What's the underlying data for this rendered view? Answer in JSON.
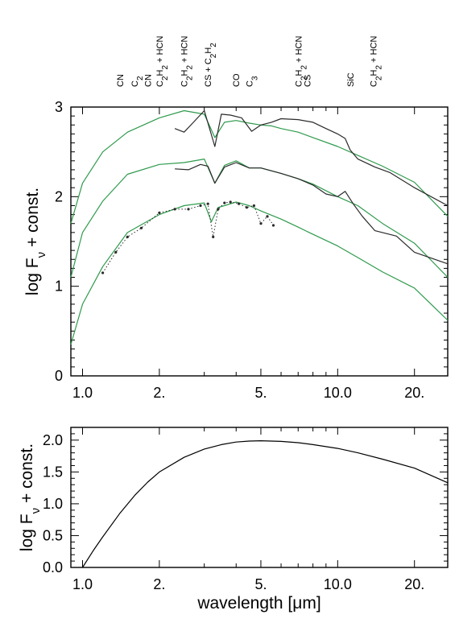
{
  "chart_data": [
    {
      "type": "line",
      "xlabel": "",
      "ylabel": "log F_ν + const.",
      "ylabel_parts": [
        "log F",
        "ν",
        " + const."
      ],
      "x_scale": "log",
      "xlim": [
        0.9,
        27
      ],
      "ylim": [
        0,
        3
      ],
      "x_tick_labels": [
        {
          "value": 1.0,
          "label": "1.0"
        },
        {
          "value": 2.0,
          "label": "2."
        },
        {
          "value": 5.0,
          "label": "5."
        },
        {
          "value": 10.0,
          "label": "10.0"
        },
        {
          "value": 20.0,
          "label": "20."
        }
      ],
      "y_tick_labels": [
        {
          "value": 0,
          "label": "0"
        },
        {
          "value": 1,
          "label": "1"
        },
        {
          "value": 2,
          "label": "2"
        },
        {
          "value": 3,
          "label": "3"
        }
      ],
      "molecular_bands": [
        {
          "x": 1.4,
          "parts": [
            [
              "CN",
              ""
            ]
          ]
        },
        {
          "x": 1.6,
          "parts": [
            [
              "C",
              ""
            ],
            [
              "2",
              "sub"
            ]
          ]
        },
        {
          "x": 1.8,
          "parts": [
            [
              "CN",
              ""
            ]
          ]
        },
        {
          "x": 2.0,
          "parts": [
            [
              "C",
              ""
            ],
            [
              "2",
              "sub"
            ],
            [
              "H",
              ""
            ],
            [
              "2",
              "sub"
            ],
            [
              " + HCN",
              ""
            ]
          ]
        },
        {
          "x": 2.5,
          "parts": [
            [
              "C",
              ""
            ],
            [
              "2",
              "sub"
            ],
            [
              "H",
              ""
            ],
            [
              "2",
              "sub"
            ],
            [
              " + HCN",
              ""
            ]
          ]
        },
        {
          "x": 3.1,
          "parts": [
            [
              "CS + C",
              ""
            ],
            [
              "2",
              "sub"
            ],
            [
              "H",
              ""
            ],
            [
              "2",
              "sub"
            ]
          ]
        },
        {
          "x": 4.0,
          "parts": [
            [
              "CO",
              ""
            ]
          ]
        },
        {
          "x": 4.5,
          "parts": [
            [
              "C",
              ""
            ],
            [
              "3",
              "sub"
            ]
          ]
        },
        {
          "x": 7.0,
          "parts": [
            [
              "C",
              ""
            ],
            [
              "2",
              "sub"
            ],
            [
              "H",
              ""
            ],
            [
              "2",
              "sub"
            ],
            [
              " + HCN",
              ""
            ]
          ]
        },
        {
          "x": 7.6,
          "parts": [
            [
              "CS",
              ""
            ]
          ]
        },
        {
          "x": 11.2,
          "parts": [
            [
              "SiC",
              ""
            ]
          ]
        },
        {
          "x": 13.8,
          "parts": [
            [
              "C",
              ""
            ],
            [
              "2",
              "sub"
            ],
            [
              "H",
              ""
            ],
            [
              "2",
              "sub"
            ],
            [
              " + HCN",
              ""
            ]
          ]
        }
      ],
      "series": [
        {
          "style": "model",
          "color": "#2e9a4c",
          "x": [
            0.9,
            1.0,
            1.2,
            1.5,
            2.0,
            2.5,
            3.0,
            3.3,
            3.6,
            4.0,
            4.5,
            5.0,
            5.5,
            6.0,
            7.0,
            8.0,
            10.0,
            12.0,
            15.0,
            20.0,
            27.0
          ],
          "y": [
            1.7,
            2.15,
            2.5,
            2.72,
            2.88,
            2.96,
            2.92,
            2.66,
            2.83,
            2.85,
            2.82,
            2.8,
            2.79,
            2.76,
            2.72,
            2.66,
            2.56,
            2.46,
            2.34,
            2.16,
            1.78
          ]
        },
        {
          "style": "observed",
          "color": "#2a2a2a",
          "x": [
            2.3,
            2.5,
            2.7,
            3.0,
            3.3,
            3.5,
            3.8,
            4.2,
            4.6,
            5.0,
            5.5,
            6.0,
            7.0,
            8.0,
            9.0,
            10.0,
            10.7,
            11.2,
            12.0,
            14.0,
            16.0,
            20.0,
            27.0
          ],
          "y": [
            2.76,
            2.72,
            2.82,
            2.96,
            2.56,
            2.92,
            2.91,
            2.88,
            2.73,
            2.8,
            2.83,
            2.87,
            2.86,
            2.83,
            2.76,
            2.7,
            2.65,
            2.52,
            2.42,
            2.33,
            2.27,
            2.1,
            1.9
          ]
        },
        {
          "style": "model",
          "color": "#2e9a4c",
          "x": [
            0.9,
            1.0,
            1.2,
            1.5,
            2.0,
            2.5,
            3.0,
            3.3,
            3.6,
            4.0,
            4.5,
            5.0,
            6.0,
            7.0,
            8.0,
            10.0,
            12.0,
            15.0,
            20.0,
            27.0
          ],
          "y": [
            1.1,
            1.6,
            1.95,
            2.25,
            2.36,
            2.38,
            2.42,
            2.15,
            2.35,
            2.4,
            2.32,
            2.32,
            2.26,
            2.2,
            2.14,
            2.0,
            1.9,
            1.7,
            1.48,
            1.1
          ]
        },
        {
          "style": "observed",
          "color": "#2a2a2a",
          "x": [
            2.3,
            2.6,
            2.9,
            3.1,
            3.3,
            3.6,
            4.0,
            4.5,
            5.0,
            6.0,
            7.0,
            8.0,
            9.0,
            10.0,
            10.7,
            11.5,
            12.5,
            14.0,
            17.0,
            20.0,
            27.0
          ],
          "y": [
            2.31,
            2.3,
            2.36,
            2.34,
            2.15,
            2.33,
            2.38,
            2.32,
            2.32,
            2.26,
            2.2,
            2.13,
            2.03,
            2.0,
            2.06,
            1.92,
            1.78,
            1.62,
            1.56,
            1.38,
            1.25
          ]
        },
        {
          "style": "model",
          "color": "#2e9a4c",
          "x": [
            0.9,
            1.0,
            1.2,
            1.5,
            2.0,
            2.5,
            3.0,
            3.2,
            3.4,
            3.6,
            4.0,
            4.5,
            5.0,
            6.0,
            7.0,
            8.0,
            10.0,
            12.0,
            15.0,
            20.0,
            27.0
          ],
          "y": [
            0.35,
            0.8,
            1.22,
            1.6,
            1.8,
            1.9,
            1.93,
            1.72,
            1.88,
            1.9,
            1.94,
            1.9,
            1.84,
            1.75,
            1.66,
            1.58,
            1.45,
            1.32,
            1.16,
            0.98,
            0.62
          ]
        },
        {
          "style": "observed-dotted",
          "color": "#2a2a2a",
          "x": [
            1.2,
            1.35,
            1.5,
            1.7,
            2.0,
            2.3,
            2.6,
            2.9,
            3.1,
            3.25,
            3.4,
            3.6,
            3.8,
            4.1,
            4.4,
            4.7,
            5.0,
            5.3,
            5.6
          ],
          "y": [
            1.15,
            1.38,
            1.55,
            1.65,
            1.82,
            1.86,
            1.86,
            1.9,
            1.92,
            1.55,
            1.86,
            1.93,
            1.94,
            1.92,
            1.88,
            1.9,
            1.7,
            1.78,
            1.68
          ]
        }
      ]
    },
    {
      "type": "line",
      "xlabel": "wavelength [μm]",
      "xlabel_parts": [
        "wavelength [",
        "μ",
        "m]"
      ],
      "ylabel": "log F_ν + const.",
      "ylabel_parts": [
        "log F",
        "ν",
        " + const."
      ],
      "x_scale": "log",
      "xlim": [
        0.9,
        27
      ],
      "ylim": [
        0,
        2.2
      ],
      "x_tick_labels": [
        {
          "value": 1.0,
          "label": "1.0"
        },
        {
          "value": 2.0,
          "label": "2."
        },
        {
          "value": 5.0,
          "label": "5."
        },
        {
          "value": 10.0,
          "label": "10.0"
        },
        {
          "value": 20.0,
          "label": "20."
        }
      ],
      "y_tick_labels": [
        {
          "value": 0.0,
          "label": "0.0"
        },
        {
          "value": 0.5,
          "label": "0.5"
        },
        {
          "value": 1.0,
          "label": "1.0"
        },
        {
          "value": 1.5,
          "label": "1.5"
        },
        {
          "value": 2.0,
          "label": "2.0"
        }
      ],
      "series": [
        {
          "style": "line",
          "color": "#000000",
          "x": [
            1.0,
            1.1,
            1.2,
            1.4,
            1.6,
            1.8,
            2.0,
            2.5,
            3.0,
            3.5,
            4.0,
            4.5,
            5.0,
            6.0,
            7.0,
            8.0,
            10.0,
            12.0,
            15.0,
            20.0,
            27.0
          ],
          "y": [
            0.0,
            0.26,
            0.48,
            0.85,
            1.13,
            1.34,
            1.5,
            1.73,
            1.86,
            1.93,
            1.97,
            1.985,
            1.99,
            1.98,
            1.96,
            1.93,
            1.87,
            1.8,
            1.7,
            1.56,
            1.33
          ]
        }
      ]
    }
  ]
}
